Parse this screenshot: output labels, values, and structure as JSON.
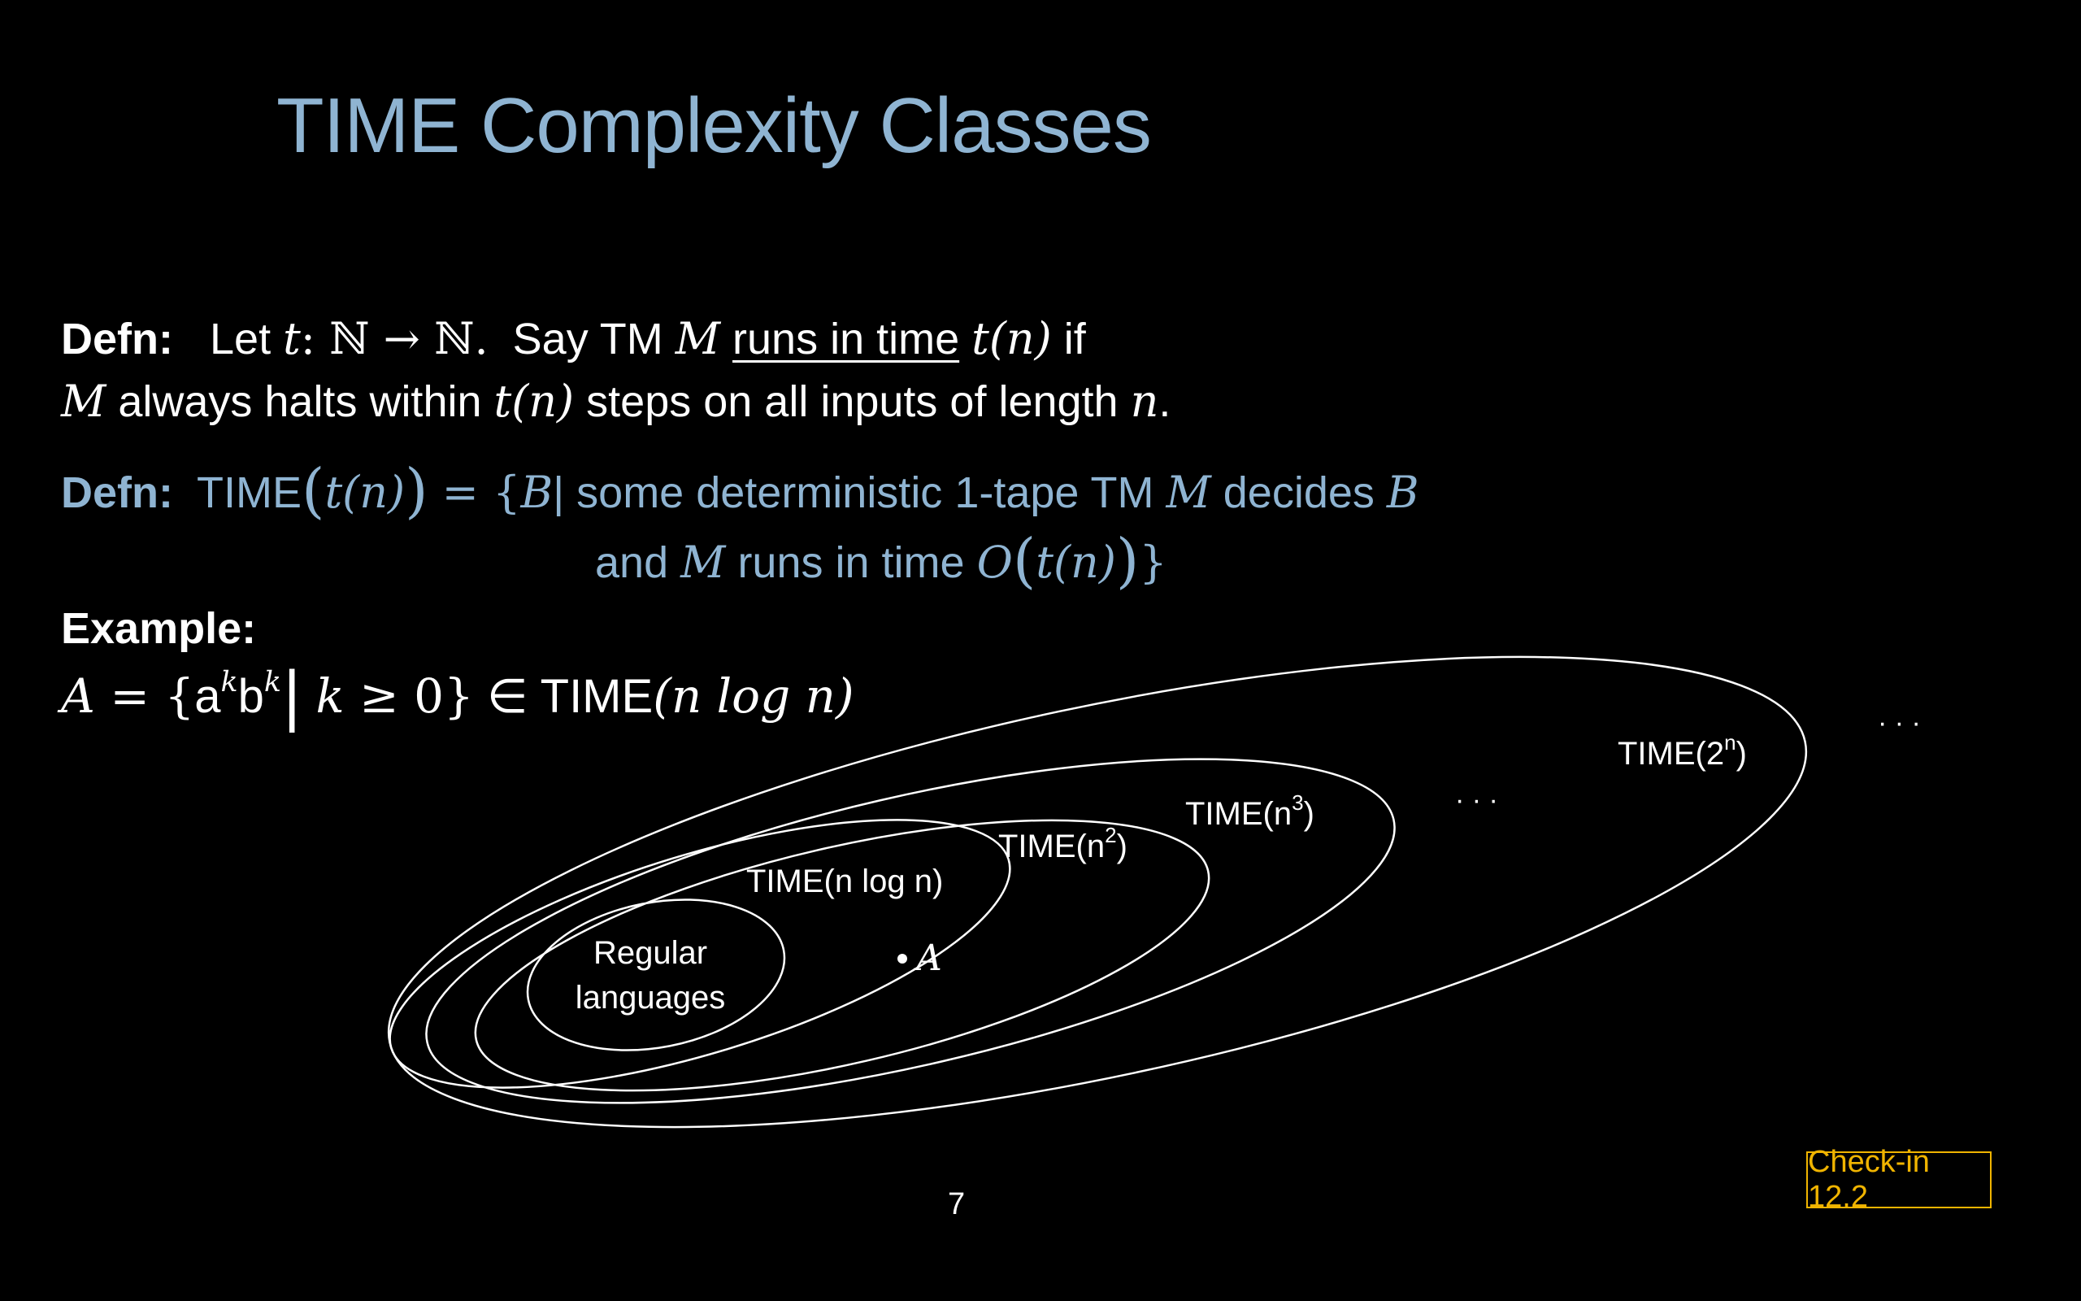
{
  "title": "TIME Complexity Classes",
  "defn1": {
    "label": "Defn:",
    "let": "Let",
    "t": "t",
    "colon_map": ":  ℕ → ℕ.",
    "say_tm": "Say TM",
    "M": "M",
    "runs_in_time": "runs in time",
    "t_of_n": "t(n)",
    "if": "if",
    "line2_M": "M",
    "always_halts": "always halts within",
    "t_of_n_2": "t(n)",
    "steps_on_all": "steps on all inputs of length",
    "n": "n",
    "period": "."
  },
  "defn2": {
    "label": "Defn:",
    "time_word": "TIME",
    "open_paren": "(",
    "t_of_n": "t(n)",
    "close_paren": ")",
    "equals_brace": " = {",
    "B": "B",
    "bar_text": "| some deterministic 1-tape TM",
    "M": "M",
    "decides": "decides",
    "B2": "B",
    "and": "and",
    "M2": "M",
    "runs_in_time": "runs in time",
    "O": "O",
    "open_paren2": "(",
    "t_of_n2": "t(n)",
    "close_paren2": ")",
    "close_brace": "}"
  },
  "example": {
    "label": "Example:",
    "A": "A",
    "eq": " = {",
    "a": "a",
    "k1": "k",
    "b": "b",
    "k2": "k",
    "bar": "|",
    "k_cond": "k",
    "geq_zero": " ≥ 0}",
    "in_time": " ∈ TIME",
    "nlogn": "(n log n)"
  },
  "diagram": {
    "regular_line1": "Regular",
    "regular_line2": "languages",
    "point_label": "A",
    "time_nlogn": "TIME(n log n)",
    "time_n2_base": "TIME(n",
    "time_n2_exp": "2",
    "time_n3_base": "TIME(n",
    "time_n3_exp": "3",
    "time_2n_base": "TIME(2",
    "time_2n_exp": "n",
    "close_paren": ")",
    "ellipsis_inner": "· · ·",
    "ellipsis_outer": "· · ·"
  },
  "page_number": "7",
  "checkin": "Check-in 12.2"
}
